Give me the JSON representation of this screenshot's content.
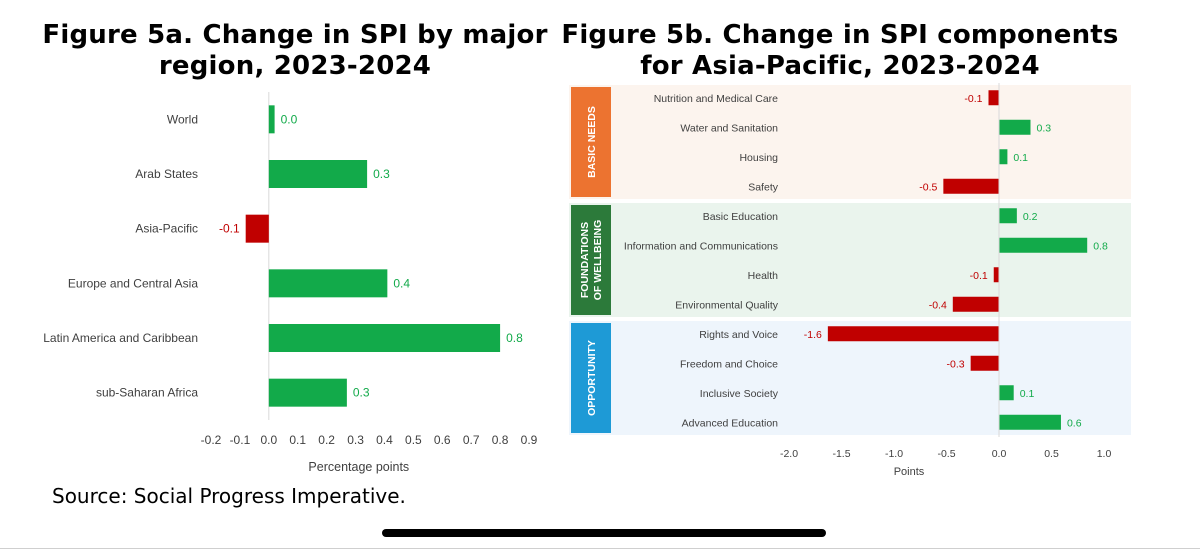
{
  "colors": {
    "positive": "#12aa4a",
    "negative": "#c00000",
    "basic_needs": "#ec7330",
    "foundations": "#2c7a3a",
    "opportunity": "#1e9ad6"
  },
  "source": "Source: Social Progress Imperative.",
  "chart_data": [
    {
      "type": "bar",
      "orientation": "horizontal",
      "title": "Figure 5a. Change in SPI by major region, 2023-2024",
      "xlabel": "Percentage points",
      "xlim": [
        -0.2,
        0.9
      ],
      "xticks": [
        "-0.2",
        "-0.1",
        "0.0",
        "0.1",
        "0.2",
        "0.3",
        "0.4",
        "0.5",
        "0.6",
        "0.7",
        "0.8",
        "0.9"
      ],
      "categories": [
        "World",
        "Arab States",
        "Asia-Pacific",
        "Europe and Central Asia",
        "Latin America and Caribbean",
        "sub-Saharan Africa"
      ],
      "values": [
        0.02,
        0.34,
        -0.08,
        0.41,
        0.8,
        0.27
      ],
      "data_labels": [
        "0.0",
        "0.3",
        "-0.1",
        "0.4",
        "0.8",
        "0.3"
      ]
    },
    {
      "type": "bar",
      "orientation": "horizontal",
      "title": "Figure 5b. Change in SPI components for Asia-Pacific, 2023-2024",
      "xlabel": "Points",
      "xlim": [
        -2.0,
        1.0
      ],
      "xticks": [
        "-2.0",
        "-1.5",
        "-1.0",
        "-0.5",
        "0.0",
        "0.5",
        "1.0"
      ],
      "groups": [
        {
          "name": "BASIC NEEDS",
          "categories": [
            "Nutrition and Medical Care",
            "Water and Sanitation",
            "Housing",
            "Safety"
          ],
          "values": [
            -0.1,
            0.3,
            0.08,
            -0.53
          ],
          "data_labels": [
            "-0.1",
            "0.3",
            "0.1",
            "-0.5"
          ]
        },
        {
          "name": "FOUNDATIONS OF WELLBEING",
          "categories": [
            "Basic Education",
            "Information and Communications",
            "Health",
            "Environmental Quality"
          ],
          "values": [
            0.17,
            0.84,
            -0.05,
            -0.44
          ],
          "data_labels": [
            "0.2",
            "0.8",
            "-0.1",
            "-0.4"
          ]
        },
        {
          "name": "OPPORTUNITY",
          "categories": [
            "Rights and Voice",
            "Freedom and Choice",
            "Inclusive Society",
            "Advanced Education"
          ],
          "values": [
            -1.63,
            -0.27,
            0.14,
            0.59
          ],
          "data_labels": [
            "-1.6",
            "-0.3",
            "0.1",
            "0.6"
          ]
        }
      ]
    }
  ]
}
